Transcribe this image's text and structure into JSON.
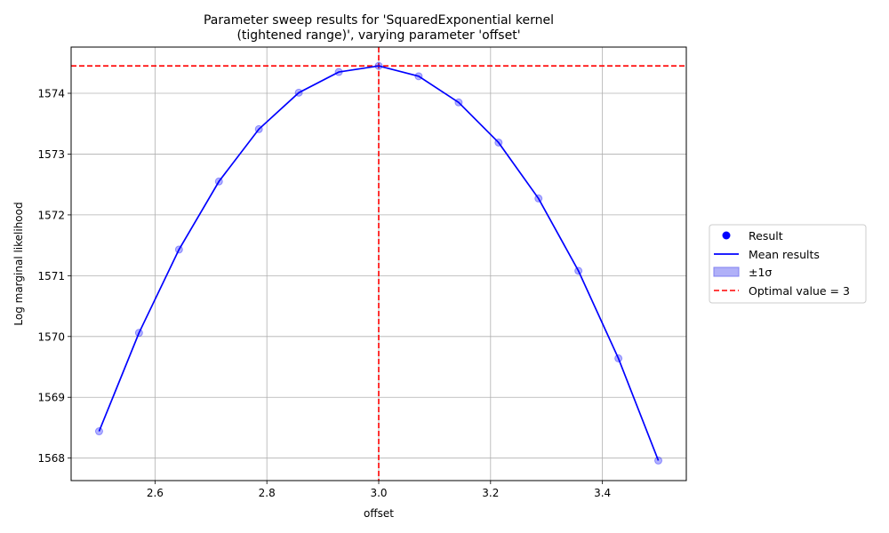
{
  "chart_data": {
    "type": "line",
    "title_lines": [
      "Parameter sweep results for 'SquaredExponential kernel",
      "(tightened range)', varying parameter 'offset'"
    ],
    "xlabel": "offset",
    "ylabel": "Log marginal likelihood",
    "xlim": [
      2.45,
      3.55
    ],
    "ylim": [
      1567.63,
      1574.76
    ],
    "xticks": [
      2.6,
      2.8,
      3.0,
      3.2,
      3.4
    ],
    "xtick_labels": [
      "2.6",
      "2.8",
      "3.0",
      "3.2",
      "3.4"
    ],
    "yticks": [
      1568,
      1569,
      1570,
      1571,
      1572,
      1573,
      1574
    ],
    "ytick_labels": [
      "1568",
      "1569",
      "1570",
      "1571",
      "1572",
      "1573",
      "1574"
    ],
    "grid": true,
    "legend_position": "right-outside",
    "x": [
      2.5,
      2.5714,
      2.6429,
      2.7143,
      2.7857,
      2.8571,
      2.9286,
      3.0,
      3.0714,
      3.1429,
      3.2143,
      3.2857,
      3.3571,
      3.4286,
      3.5
    ],
    "series": [
      {
        "name": "Result",
        "kind": "scatter",
        "color": "#0000ff",
        "values": [
          1568.44,
          1570.06,
          1571.43,
          1572.55,
          1573.41,
          1574.01,
          1574.35,
          1574.45,
          1574.28,
          1573.85,
          1573.19,
          1572.27,
          1571.08,
          1569.64,
          1567.96
        ]
      },
      {
        "name": "Mean results",
        "kind": "line",
        "color": "#0000ff",
        "values": [
          1568.44,
          1570.06,
          1571.43,
          1572.55,
          1573.41,
          1574.01,
          1574.35,
          1574.45,
          1574.28,
          1573.85,
          1573.19,
          1572.27,
          1571.08,
          1569.64,
          1567.96
        ]
      },
      {
        "name": "±1σ",
        "kind": "band",
        "color": "#b0b0f8"
      },
      {
        "name": "Optimal value = 3",
        "kind": "reference",
        "color": "#ff0000",
        "x_value": 3.0,
        "y_value": 1574.45
      }
    ]
  }
}
